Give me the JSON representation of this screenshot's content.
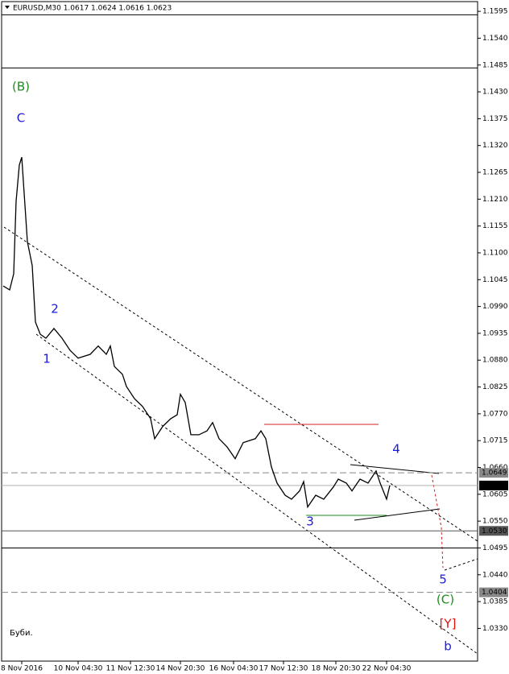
{
  "chart_data": {
    "type": "line",
    "title": "EURUSD,M30  1.0617 1.0624 1.0616 1.0623",
    "note": "Буби.",
    "color": "#000000",
    "x": [
      2,
      10,
      15,
      18,
      22,
      25,
      28,
      32,
      38,
      42,
      48,
      55,
      65,
      75,
      85,
      95,
      110,
      120,
      130,
      135,
      140,
      150,
      155,
      165,
      175,
      185,
      190,
      200,
      210,
      218,
      222,
      228,
      235,
      245,
      255,
      262,
      270,
      280,
      290,
      300,
      315,
      322,
      328,
      335,
      342,
      352,
      360,
      370,
      375,
      380,
      390,
      400,
      412,
      418,
      428,
      435,
      445,
      455,
      465,
      470,
      478,
      482
    ],
    "values": [
      1.1032,
      1.1024,
      1.1057,
      1.1206,
      1.128,
      1.1296,
      1.1222,
      1.1123,
      1.1074,
      1.0958,
      1.0933,
      1.0925,
      1.0945,
      1.0925,
      1.09,
      1.0884,
      1.0892,
      1.0909,
      1.0892,
      1.0909,
      1.0867,
      1.0851,
      1.0826,
      1.0801,
      1.0785,
      1.076,
      1.0719,
      1.0744,
      1.076,
      1.0768,
      1.081,
      1.0793,
      1.0727,
      1.0727,
      1.0735,
      1.0752,
      1.0719,
      1.0702,
      1.0678,
      1.0711,
      1.0719,
      1.0735,
      1.0719,
      1.0661,
      1.0628,
      1.0603,
      1.0595,
      1.0612,
      1.0631,
      1.0579,
      1.0603,
      1.0595,
      1.062,
      1.0636,
      1.0628,
      1.0612,
      1.0636,
      1.0628,
      1.0653,
      1.0628,
      1.0595,
      1.0623
    ],
    "xlim": [
      0,
      591
    ],
    "ylim": [
      1.0263,
      1.1615
    ],
    "xticks": [
      {
        "value": 25,
        "label": "8 Nov 2016"
      },
      {
        "value": 95,
        "label": "10 Nov 04:30"
      },
      {
        "value": 160,
        "label": "11 Nov 12:30"
      },
      {
        "value": 222,
        "label": "14 Nov 20:30"
      },
      {
        "value": 288,
        "label": "16 Nov 04:30"
      },
      {
        "value": 350,
        "label": "17 Nov 12:30"
      },
      {
        "value": 415,
        "label": "18 Nov 20:30"
      },
      {
        "value": 478,
        "label": "22 Nov 04:30"
      }
    ],
    "yticks": [
      1.1595,
      {
        "value": 1.154,
        "label": "1.1540"
      },
      1.1485,
      {
        "value": 1.143,
        "label": "1.1430"
      },
      1.1375,
      {
        "value": 1.132,
        "label": "1.1320"
      },
      1.1265,
      {
        "value": 1.121,
        "label": "1.1210"
      },
      1.1155,
      {
        "value": 1.11,
        "label": "1.1100"
      },
      1.1045,
      {
        "value": 1.099,
        "label": "1.0990"
      },
      1.0935,
      {
        "value": 1.088,
        "label": "1.0880"
      },
      1.0825,
      {
        "value": 1.077,
        "label": "1.0770"
      },
      1.0715,
      {
        "value": 1.066,
        "label": "1.0660"
      },
      1.0605,
      {
        "value": 1.055,
        "label": "1.0550"
      },
      1.0495,
      {
        "value": 1.044,
        "label": "1.0440"
      },
      1.0385,
      {
        "value": 1.033,
        "label": "1.0330"
      }
    ],
    "levels": [
      {
        "value": 1.1588,
        "color": "#000000",
        "dash": false
      },
      {
        "value": 1.1479,
        "color": "#000000",
        "dash": false
      },
      {
        "value": 1.0649,
        "label": "1.0649",
        "color": "#888888",
        "dash": true
      },
      {
        "value": 1.0623,
        "label": "1.0623",
        "color": "#b0b0b0",
        "dash": false,
        "label_color": "#000000"
      },
      {
        "value": 1.053,
        "label": "1.0530",
        "color": "#555555",
        "dash": false
      },
      {
        "value": 1.0495,
        "color": "#000000",
        "dash": false
      },
      {
        "value": 1.0404,
        "label": "1.0404",
        "color": "#888888",
        "dash": true
      }
    ],
    "annotations": [
      {
        "text": "(B)",
        "color": "#1e8c1e"
      },
      {
        "text": "C",
        "color": "#1a1adc"
      },
      {
        "text": "2",
        "color": "#1a1adc"
      },
      {
        "text": "1",
        "color": "#1a1adc"
      },
      {
        "text": "3",
        "color": "#1a1adc"
      },
      {
        "text": "4",
        "color": "#1a1adc"
      },
      {
        "text": "5",
        "color": "#1a1adc"
      },
      {
        "text": "(C)",
        "color": "#1e8c1e"
      },
      {
        "text": "[Y]",
        "color": "#e01010"
      },
      {
        "text": "b",
        "color": "#1a1adc"
      }
    ]
  }
}
